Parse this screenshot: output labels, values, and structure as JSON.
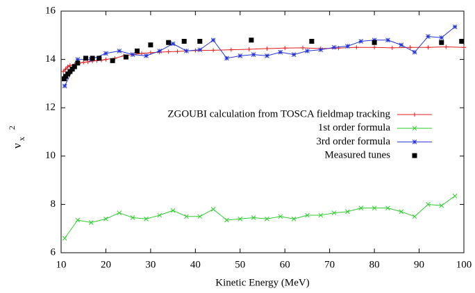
{
  "chart_data": {
    "type": "line",
    "x_label": "Kinetic Energy (MeV)",
    "y_label": "ν",
    "y_label_sub": "x",
    "y_label_sup": "2",
    "xlim": [
      10,
      100
    ],
    "xticks": [
      10,
      20,
      30,
      40,
      50,
      60,
      70,
      80,
      90,
      100
    ],
    "ylim": [
      6,
      16
    ],
    "yticks": [
      6,
      8,
      10,
      12,
      14,
      16
    ],
    "grid": false,
    "legend": "right",
    "series": [
      {
        "name": "ZGOUBI calculation from TOSCA fieldmap tracking",
        "color": "#e41a1c",
        "style": "linespoints",
        "marker": "plus",
        "x": [
          10.5,
          11,
          11.5,
          12,
          13,
          14,
          15,
          16,
          17,
          18,
          19,
          20,
          22,
          24,
          26,
          28,
          30,
          32,
          34,
          36,
          38,
          40,
          44,
          48,
          52,
          56,
          60,
          64,
          68,
          72,
          76,
          80,
          84,
          88,
          92,
          96,
          100
        ],
        "values": [
          13.5,
          13.6,
          13.7,
          13.75,
          13.8,
          13.85,
          13.88,
          13.9,
          13.93,
          13.95,
          13.97,
          14.0,
          14.05,
          14.15,
          14.2,
          14.25,
          14.28,
          14.3,
          14.32,
          14.33,
          14.35,
          14.37,
          14.38,
          14.4,
          14.42,
          14.45,
          14.47,
          14.48,
          14.45,
          14.47,
          14.5,
          14.5,
          14.48,
          14.5,
          14.5,
          14.52,
          14.5
        ]
      },
      {
        "name": "1st order formula",
        "color": "#2ccd2c",
        "style": "linespoints",
        "marker": "cross",
        "x": [
          10.8,
          13.7,
          16.7,
          20,
          23,
          26,
          29,
          32,
          35,
          38,
          41,
          44,
          47,
          50,
          53,
          56,
          59,
          62,
          65,
          68,
          71,
          74,
          77,
          80,
          83,
          86,
          89,
          92,
          95,
          98
        ],
        "values": [
          6.6,
          7.35,
          7.25,
          7.4,
          7.65,
          7.45,
          7.4,
          7.55,
          7.75,
          7.5,
          7.5,
          7.8,
          7.35,
          7.4,
          7.45,
          7.4,
          7.5,
          7.4,
          7.55,
          7.55,
          7.65,
          7.7,
          7.85,
          7.85,
          7.85,
          7.7,
          7.5,
          8.0,
          7.95,
          8.35
        ]
      },
      {
        "name": "3rd order formula",
        "color": "#2233dd",
        "style": "linespoints",
        "marker": "star",
        "x": [
          10.8,
          13.7,
          16.7,
          20,
          23,
          26,
          29,
          32,
          35,
          38,
          41,
          44,
          47,
          50,
          53,
          56,
          59,
          62,
          65,
          68,
          71,
          74,
          77,
          80,
          83,
          86,
          89,
          92,
          95,
          98
        ],
        "values": [
          12.9,
          14.0,
          14.0,
          14.25,
          14.35,
          14.2,
          14.15,
          14.35,
          14.65,
          14.35,
          14.4,
          14.8,
          14.05,
          14.15,
          14.2,
          14.15,
          14.3,
          14.2,
          14.35,
          14.4,
          14.5,
          14.55,
          14.75,
          14.8,
          14.8,
          14.6,
          14.3,
          14.95,
          14.9,
          15.35
        ]
      },
      {
        "name": "Measured tunes",
        "color": "#000000",
        "style": "points",
        "marker": "square",
        "x": [
          10.7,
          11,
          11.5,
          12,
          12.5,
          13,
          13.7,
          15.5,
          17,
          18.5,
          21.5,
          24.5,
          27,
          30,
          34,
          37.5,
          41,
          52.5,
          66,
          80,
          95,
          99.5
        ],
        "values": [
          13.2,
          13.3,
          13.4,
          13.5,
          13.6,
          13.7,
          13.85,
          14.05,
          14.05,
          14.05,
          13.95,
          14.1,
          14.35,
          14.6,
          14.7,
          14.75,
          14.75,
          14.8,
          14.75,
          14.7,
          14.7,
          14.75
        ]
      }
    ]
  }
}
